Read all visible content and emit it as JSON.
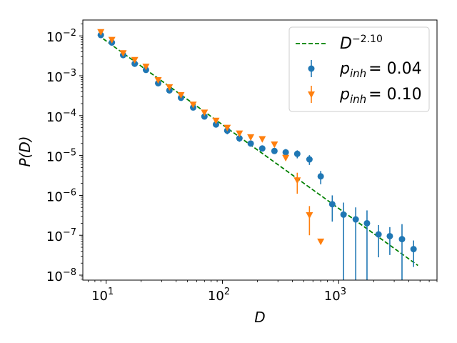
{
  "chart_data": {
    "type": "scatter",
    "title": "",
    "xlabel": "D",
    "ylabel": "P(D)",
    "xscale": "log",
    "yscale": "log",
    "xlim": [
      6.3,
      7000
    ],
    "ylim": [
      7.5e-09,
      0.025
    ],
    "x_ticks": [
      {
        "value": 10,
        "base": "10",
        "exp": "1"
      },
      {
        "value": 100,
        "base": "10",
        "exp": "2"
      },
      {
        "value": 1000,
        "base": "10",
        "exp": "3"
      }
    ],
    "y_ticks": [
      {
        "value": 1e-08,
        "base": "10",
        "exp": "−8"
      },
      {
        "value": 1e-07,
        "base": "10",
        "exp": "−7"
      },
      {
        "value": 1e-06,
        "base": "10",
        "exp": "−6"
      },
      {
        "value": 1e-05,
        "base": "10",
        "exp": "−5"
      },
      {
        "value": 0.0001,
        "base": "10",
        "exp": "−4"
      },
      {
        "value": 0.001,
        "base": "10",
        "exp": "−3"
      },
      {
        "value": 0.01,
        "base": "10",
        "exp": "−2"
      }
    ],
    "fit_line": {
      "name": "D^-2.10",
      "legend_base": "D",
      "legend_exp": "−2.10",
      "exponent": -2.1,
      "x_range": [
        8.5,
        4800
      ],
      "y_start": 0.0105,
      "color": "#008000"
    },
    "series": [
      {
        "name": "p_inh = 0.04",
        "legend_sub": "inh",
        "legend_value": "= 0.04",
        "marker": "circle",
        "color": "#1f77b4",
        "points": [
          {
            "x": 9,
            "y": 0.0105,
            "lo": 0.0095,
            "hi": 0.0115
          },
          {
            "x": 11.2,
            "y": 0.0068,
            "lo": 0.0062,
            "hi": 0.0074
          },
          {
            "x": 14,
            "y": 0.0033,
            "lo": 0.003,
            "hi": 0.0036
          },
          {
            "x": 17.6,
            "y": 0.002,
            "lo": 0.0018,
            "hi": 0.0022
          },
          {
            "x": 22,
            "y": 0.0014,
            "lo": 0.00125,
            "hi": 0.00155
          },
          {
            "x": 28,
            "y": 0.00065,
            "lo": 0.00058,
            "hi": 0.00072
          },
          {
            "x": 35,
            "y": 0.00043,
            "lo": 0.00039,
            "hi": 0.00047
          },
          {
            "x": 44,
            "y": 0.00028,
            "lo": 0.00025,
            "hi": 0.00031
          },
          {
            "x": 56,
            "y": 0.00016,
            "lo": 0.000145,
            "hi": 0.000175
          },
          {
            "x": 70,
            "y": 9.5e-05,
            "lo": 8.5e-05,
            "hi": 0.000105
          },
          {
            "x": 88,
            "y": 6e-05,
            "lo": 5.3e-05,
            "hi": 6.8e-05
          },
          {
            "x": 110,
            "y": 4.2e-05,
            "lo": 3.4e-05,
            "hi": 5e-05
          },
          {
            "x": 140,
            "y": 2.7e-05,
            "lo": 2.2e-05,
            "hi": 3.2e-05
          },
          {
            "x": 175,
            "y": 2e-05,
            "lo": 1.7e-05,
            "hi": 2.3e-05
          },
          {
            "x": 220,
            "y": 1.5e-05,
            "lo": 1.3e-05,
            "hi": 1.7e-05
          },
          {
            "x": 280,
            "y": 1.3e-05,
            "lo": 1.1e-05,
            "hi": 1.5e-05
          },
          {
            "x": 350,
            "y": 1.2e-05,
            "lo": 9.5e-06,
            "hi": 1.45e-05
          },
          {
            "x": 440,
            "y": 1.1e-05,
            "lo": 8.5e-06,
            "hi": 1.35e-05
          },
          {
            "x": 560,
            "y": 8e-06,
            "lo": 5.8e-06,
            "hi": 1.02e-05
          },
          {
            "x": 700,
            "y": 3e-06,
            "lo": 1.9e-06,
            "hi": 4.1e-06
          },
          {
            "x": 880,
            "y": 6e-07,
            "lo": 2.2e-07,
            "hi": 1e-06
          },
          {
            "x": 1100,
            "y": 3.3e-07,
            "lo": 7.5e-09,
            "hi": 6.6e-07
          },
          {
            "x": 1400,
            "y": 2.5e-07,
            "lo": 7.5e-09,
            "hi": 5e-07
          },
          {
            "x": 1750,
            "y": 2e-07,
            "lo": 7.5e-09,
            "hi": 4.2e-07
          },
          {
            "x": 2200,
            "y": 1.05e-07,
            "lo": 2.8e-08,
            "hi": 1.8e-07
          },
          {
            "x": 2750,
            "y": 9.5e-08,
            "lo": 3.2e-08,
            "hi": 1.6e-07
          },
          {
            "x": 3500,
            "y": 8e-08,
            "lo": 7.5e-09,
            "hi": 1.9e-07
          },
          {
            "x": 4400,
            "y": 4.5e-08,
            "lo": 1.6e-08,
            "hi": 7.4e-08
          }
        ]
      },
      {
        "name": "p_inh = 0.10",
        "legend_sub": "inh",
        "legend_value": "= 0.10",
        "marker": "triangle-down",
        "color": "#ff7f0e",
        "points": [
          {
            "x": 9,
            "y": 0.0125,
            "lo": 0.0117,
            "hi": 0.0133
          },
          {
            "x": 11.2,
            "y": 0.008,
            "lo": 0.0075,
            "hi": 0.0085
          },
          {
            "x": 14,
            "y": 0.0037,
            "lo": 0.0035,
            "hi": 0.0039
          },
          {
            "x": 17.6,
            "y": 0.0025,
            "lo": 0.0023,
            "hi": 0.0027
          },
          {
            "x": 22,
            "y": 0.0017,
            "lo": 0.0016,
            "hi": 0.0018
          },
          {
            "x": 28,
            "y": 0.00078,
            "lo": 0.00073,
            "hi": 0.00083
          },
          {
            "x": 35,
            "y": 0.00052,
            "lo": 0.00049,
            "hi": 0.00055
          },
          {
            "x": 44,
            "y": 0.00033,
            "lo": 0.00031,
            "hi": 0.00035
          },
          {
            "x": 56,
            "y": 0.00019,
            "lo": 0.00018,
            "hi": 0.0002
          },
          {
            "x": 70,
            "y": 0.00012,
            "lo": 0.000113,
            "hi": 0.000127
          },
          {
            "x": 88,
            "y": 7.5e-05,
            "lo": 7e-05,
            "hi": 8e-05
          },
          {
            "x": 110,
            "y": 5e-05,
            "lo": 4.6e-05,
            "hi": 5.4e-05
          },
          {
            "x": 140,
            "y": 3.6e-05,
            "lo": 3.3e-05,
            "hi": 3.9e-05
          },
          {
            "x": 175,
            "y": 2.9e-05,
            "lo": 2.7e-05,
            "hi": 3.1e-05
          },
          {
            "x": 220,
            "y": 2.6e-05,
            "lo": 2.4e-05,
            "hi": 2.8e-05
          },
          {
            "x": 280,
            "y": 1.9e-05,
            "lo": 1.7e-05,
            "hi": 2.1e-05
          },
          {
            "x": 350,
            "y": 8.8e-06,
            "lo": 7.5e-06,
            "hi": 1.01e-05
          },
          {
            "x": 440,
            "y": 2.4e-06,
            "lo": 1.1e-06,
            "hi": 3.7e-06
          },
          {
            "x": 560,
            "y": 3.2e-07,
            "lo": 1e-07,
            "hi": 5.4e-07
          },
          {
            "x": 700,
            "y": 7e-08,
            "lo": 6e-08,
            "hi": 8e-08
          }
        ]
      }
    ],
    "legend": {
      "position": "upper right"
    }
  }
}
